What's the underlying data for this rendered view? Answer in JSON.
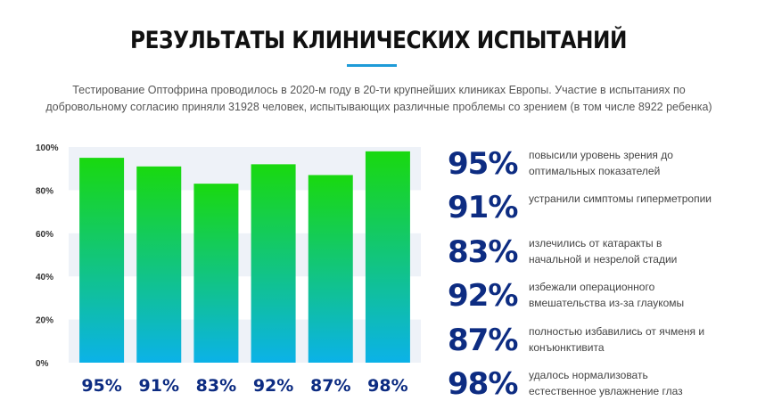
{
  "page": {
    "title": "РЕЗУЛЬТАТЫ КЛИНИЧЕСКИХ ИСПЫТАНИЙ",
    "intro": "Тестирование Оптофрина проводилось в 2020-м году в 20-ти крупнейших клиниках Европы. Участие в испытаниях по добровольному согласию приняли 31928 человек, испытывающих различные проблемы со зрением (в том числе 8922 ребенка)",
    "accent_color": "#1e9bd8"
  },
  "chart_data": {
    "type": "bar",
    "categories": [
      "95%",
      "91%",
      "83%",
      "92%",
      "87%",
      "98%"
    ],
    "values": [
      95,
      91,
      83,
      92,
      87,
      98
    ],
    "y_ticks": [
      "0%",
      "20%",
      "40%",
      "60%",
      "80%",
      "100%"
    ],
    "ylim": [
      0,
      100
    ],
    "grid": "alternating horizontal bands",
    "band_color": "#eef2f8",
    "bar_gradient": {
      "top": "#19d90f",
      "bottom": "#0bb2e8"
    },
    "category_label_color": "#0d2c82"
  },
  "stats": [
    {
      "value": "95%",
      "text": "повысили уровень зрения до оптимальных показателей"
    },
    {
      "value": "91%",
      "text": "устранили симптомы гиперметропии"
    },
    {
      "value": "83%",
      "text": "излечились от катаракты в начальной и незрелой стадии"
    },
    {
      "value": "92%",
      "text": "избежали операционного вмешательства из-за глаукомы"
    },
    {
      "value": "87%",
      "text": "полностью избавились от ячменя и конъюнктивита"
    },
    {
      "value": "98%",
      "text": "удалось нормализовать естественное увлажнение глаз"
    }
  ]
}
